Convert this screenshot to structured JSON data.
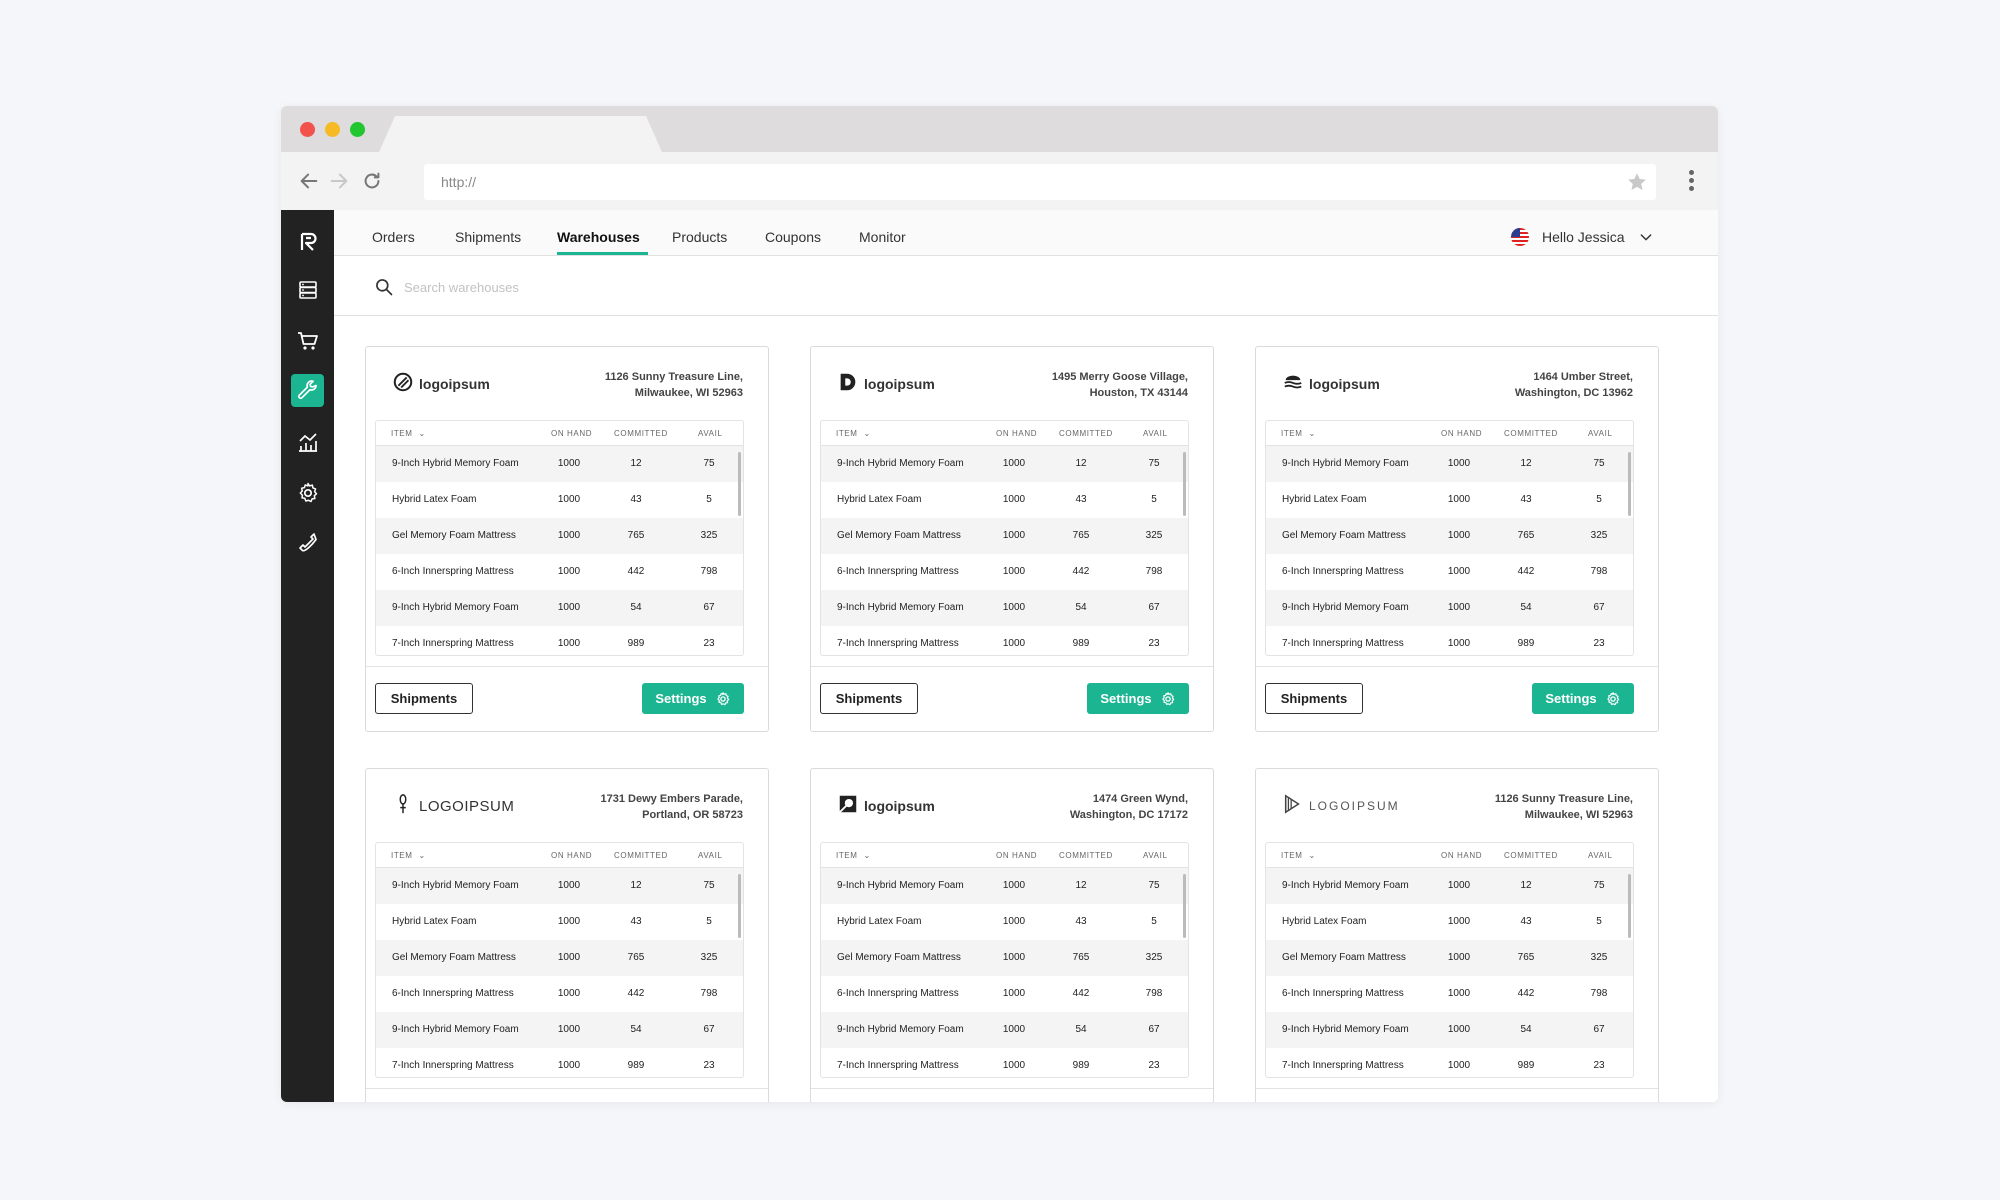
{
  "browser": {
    "url": "http://"
  },
  "nav": {
    "tabs": [
      {
        "label": "Orders"
      },
      {
        "label": "Shipments"
      },
      {
        "label": "Warehouses"
      },
      {
        "label": "Products"
      },
      {
        "label": "Coupons"
      },
      {
        "label": "Monitor"
      }
    ],
    "active_tab": "Warehouses",
    "user_greeting": "Hello Jessica"
  },
  "sidebar": {
    "items": [
      {
        "icon": "logo-icon"
      },
      {
        "icon": "database-icon"
      },
      {
        "icon": "cart-icon"
      },
      {
        "icon": "wrench-icon",
        "active": true
      },
      {
        "icon": "analytics-icon"
      },
      {
        "icon": "gear-icon"
      },
      {
        "icon": "phone-icon"
      }
    ]
  },
  "search": {
    "placeholder": "Search warehouses"
  },
  "table_headers": {
    "item": "ITEM",
    "on_hand": "ON HAND",
    "committed": "COMMITTED",
    "avail": "AVAIL"
  },
  "buttons": {
    "shipments": "Shipments",
    "settings": "Settings"
  },
  "warehouses": [
    {
      "logo": "logoipsum",
      "logo_icon": "circle-slash-logo-icon",
      "address_line1": "1126 Sunny Treasure Line,",
      "address_line2": "Milwaukee, WI 52963",
      "rows": [
        {
          "item": "9-Inch Hybrid Memory Foam",
          "on_hand": "1000",
          "committed": "12",
          "avail": "75"
        },
        {
          "item": "Hybrid Latex Foam",
          "on_hand": "1000",
          "committed": "43",
          "avail": "5"
        },
        {
          "item": "Gel Memory Foam Mattress",
          "on_hand": "1000",
          "committed": "765",
          "avail": "325"
        },
        {
          "item": "6-Inch Innerspring Mattress",
          "on_hand": "1000",
          "committed": "442",
          "avail": "798"
        },
        {
          "item": "9-Inch Hybrid Memory Foam",
          "on_hand": "1000",
          "committed": "54",
          "avail": "67"
        },
        {
          "item": "7-Inch Innerspring Mattress",
          "on_hand": "1000",
          "committed": "989",
          "avail": "23"
        }
      ]
    },
    {
      "logo": "logoipsum",
      "logo_icon": "d-shape-logo-icon",
      "address_line1": "1495 Merry Goose Village,",
      "address_line2": "Houston, TX 43144",
      "rows": [
        {
          "item": "9-Inch Hybrid Memory Foam",
          "on_hand": "1000",
          "committed": "12",
          "avail": "75"
        },
        {
          "item": "Hybrid Latex Foam",
          "on_hand": "1000",
          "committed": "43",
          "avail": "5"
        },
        {
          "item": "Gel Memory Foam Mattress",
          "on_hand": "1000",
          "committed": "765",
          "avail": "325"
        },
        {
          "item": "6-Inch Innerspring Mattress",
          "on_hand": "1000",
          "committed": "442",
          "avail": "798"
        },
        {
          "item": "9-Inch Hybrid Memory Foam",
          "on_hand": "1000",
          "committed": "54",
          "avail": "67"
        },
        {
          "item": "7-Inch Innerspring Mattress",
          "on_hand": "1000",
          "committed": "989",
          "avail": "23"
        }
      ]
    },
    {
      "logo": "logoipsum",
      "logo_icon": "waves-logo-icon",
      "address_line1": "1464 Umber Street,",
      "address_line2": "Washington, DC 13962",
      "rows": [
        {
          "item": "9-Inch Hybrid Memory Foam",
          "on_hand": "1000",
          "committed": "12",
          "avail": "75"
        },
        {
          "item": "Hybrid Latex Foam",
          "on_hand": "1000",
          "committed": "43",
          "avail": "5"
        },
        {
          "item": "Gel Memory Foam Mattress",
          "on_hand": "1000",
          "committed": "765",
          "avail": "325"
        },
        {
          "item": "6-Inch Innerspring Mattress",
          "on_hand": "1000",
          "committed": "442",
          "avail": "798"
        },
        {
          "item": "9-Inch Hybrid Memory Foam",
          "on_hand": "1000",
          "committed": "54",
          "avail": "67"
        },
        {
          "item": "7-Inch Innerspring Mattress",
          "on_hand": "1000",
          "committed": "989",
          "avail": "23"
        }
      ]
    },
    {
      "logo": "LOGOIPSUM",
      "logo_icon": "stamen-logo-icon",
      "address_line1": "1731 Dewy Embers Parade,",
      "address_line2": "Portland, OR 58723",
      "rows": [
        {
          "item": "9-Inch Hybrid Memory Foam",
          "on_hand": "1000",
          "committed": "12",
          "avail": "75"
        },
        {
          "item": "Hybrid Latex Foam",
          "on_hand": "1000",
          "committed": "43",
          "avail": "5"
        },
        {
          "item": "Gel Memory Foam Mattress",
          "on_hand": "1000",
          "committed": "765",
          "avail": "325"
        },
        {
          "item": "6-Inch Innerspring Mattress",
          "on_hand": "1000",
          "committed": "442",
          "avail": "798"
        },
        {
          "item": "9-Inch Hybrid Memory Foam",
          "on_hand": "1000",
          "committed": "54",
          "avail": "67"
        },
        {
          "item": "7-Inch Innerspring Mattress",
          "on_hand": "1000",
          "committed": "989",
          "avail": "23"
        }
      ]
    },
    {
      "logo": "logoipsum",
      "logo_icon": "folded-square-logo-icon",
      "address_line1": "1474 Green Wynd,",
      "address_line2": "Washington, DC 17172",
      "rows": [
        {
          "item": "9-Inch Hybrid Memory Foam",
          "on_hand": "1000",
          "committed": "12",
          "avail": "75"
        },
        {
          "item": "Hybrid Latex Foam",
          "on_hand": "1000",
          "committed": "43",
          "avail": "5"
        },
        {
          "item": "Gel Memory Foam Mattress",
          "on_hand": "1000",
          "committed": "765",
          "avail": "325"
        },
        {
          "item": "6-Inch Innerspring Mattress",
          "on_hand": "1000",
          "committed": "442",
          "avail": "798"
        },
        {
          "item": "9-Inch Hybrid Memory Foam",
          "on_hand": "1000",
          "committed": "54",
          "avail": "67"
        },
        {
          "item": "7-Inch Innerspring Mattress",
          "on_hand": "1000",
          "committed": "989",
          "avail": "23"
        }
      ]
    },
    {
      "logo": "LOGOIPSUM",
      "logo_icon": "arrow-logo-icon",
      "address_line1": "1126 Sunny Treasure Line,",
      "address_line2": "Milwaukee, WI 52963",
      "rows": [
        {
          "item": "9-Inch Hybrid Memory Foam",
          "on_hand": "1000",
          "committed": "12",
          "avail": "75"
        },
        {
          "item": "Hybrid Latex Foam",
          "on_hand": "1000",
          "committed": "43",
          "avail": "5"
        },
        {
          "item": "Gel Memory Foam Mattress",
          "on_hand": "1000",
          "committed": "765",
          "avail": "325"
        },
        {
          "item": "6-Inch Innerspring Mattress",
          "on_hand": "1000",
          "committed": "442",
          "avail": "798"
        },
        {
          "item": "9-Inch Hybrid Memory Foam",
          "on_hand": "1000",
          "committed": "54",
          "avail": "67"
        },
        {
          "item": "7-Inch Innerspring Mattress",
          "on_hand": "1000",
          "committed": "989",
          "avail": "23"
        }
      ]
    }
  ],
  "colors": {
    "accent": "#1bb592",
    "sidebar": "#222222"
  }
}
